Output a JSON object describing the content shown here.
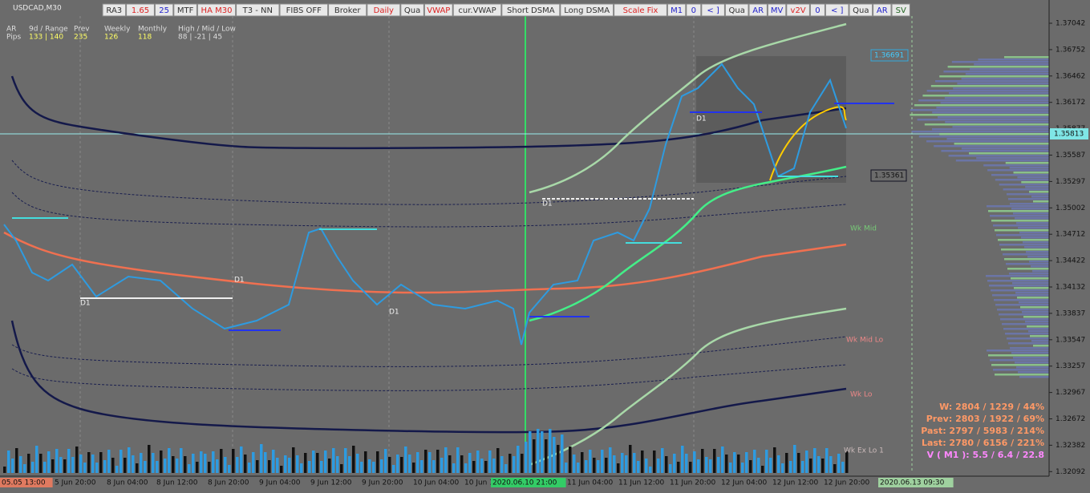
{
  "header": {
    "symbol": "USDCAD,M30"
  },
  "toolbar": [
    "RA3",
    "1.65",
    "25",
    "MTF",
    "HA M30",
    "T3 - NN",
    "FIBS OFF",
    "Broker",
    "Daily",
    "Qua",
    "VWAP",
    "cur.VWAP",
    "Short DSMA",
    "Long DSMA",
    "Scale Fix",
    "M1",
    "0",
    "< ]",
    "Qua",
    "AR",
    "MV",
    "v2V",
    "0",
    "< ]",
    "Qua",
    "AR",
    "SV"
  ],
  "info": {
    "rows": [
      [
        "AR",
        "9d / Range",
        "Prev",
        "Weekly",
        "Monthly",
        "High / Mid / Low"
      ],
      [
        "Pips",
        "133 | 140",
        "235",
        "126",
        "118",
        "88 | -21 | 45"
      ]
    ]
  },
  "price_axis": [
    "1.37042",
    "1.36752",
    "1.36462",
    "1.36172",
    "1.35877",
    "1.35587",
    "1.35297",
    "1.35002",
    "1.34712",
    "1.34422",
    "1.34132",
    "1.33837",
    "1.33547",
    "1.33257",
    "1.32967",
    "1.32672",
    "1.32382",
    "1.32092"
  ],
  "price_markers": {
    "box_high": "1.36691",
    "current": "1.35813",
    "box_low": "1.35361"
  },
  "time_axis": [
    "05.05 13:00",
    "5 Jun 20:00",
    "8 Jun 04:00",
    "8 Jun 12:00",
    "8 Jun 20:00",
    "9 Jun 04:00",
    "9 Jun 12:00",
    "9 Jun 20:00",
    "10 Jun 04:00",
    "10 Jun 12:00",
    "2020.06.10 21:00",
    "11 Jun 04:00",
    "11 Jun 12:00",
    "11 Jun 20:00",
    "12 Jun 04:00",
    "12 Jun 12:00",
    "12 Jun 20:00",
    "2020.06.13 09:30"
  ],
  "chart_labels": {
    "wk_mid": "Wk Mid",
    "wk_mid_lo": "Wk Mid Lo",
    "wk_lo": "Wk Lo",
    "wk_ex_lo": "Wk Ex Lo 1",
    "d1": "D1"
  },
  "stats": [
    "W: 2804 / 1229 / 44%",
    "Prev: 2803 / 1922 / 69%",
    "Past: 2797 / 5983 / 214%",
    "Last: 2780 / 6156 / 221%",
    "V ( M1 ): 5.5 / 6.4 / 22.8"
  ]
}
